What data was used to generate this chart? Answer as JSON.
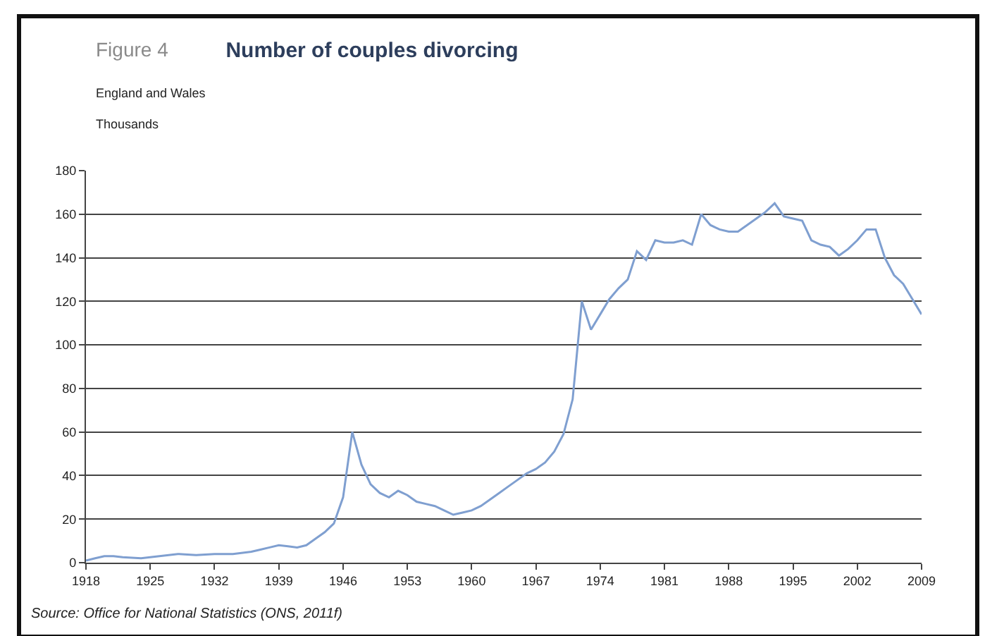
{
  "chart_data": {
    "type": "line",
    "title": "Number of couples divorcing",
    "subtitle": "England and Wales",
    "ylabel": "Thousands",
    "annotations": [
      "Figure 4",
      "Source: Office for National Statistics (ONS, 2011f)"
    ],
    "x": [
      1918,
      1919,
      1920,
      1921,
      1922,
      1924,
      1926,
      1928,
      1930,
      1932,
      1934,
      1936,
      1937,
      1938,
      1939,
      1940,
      1941,
      1942,
      1943,
      1944,
      1945,
      1946,
      1947,
      1948,
      1949,
      1950,
      1951,
      1952,
      1953,
      1954,
      1955,
      1956,
      1957,
      1958,
      1959,
      1960,
      1961,
      1962,
      1963,
      1964,
      1965,
      1966,
      1967,
      1968,
      1969,
      1970,
      1971,
      1972,
      1973,
      1974,
      1975,
      1976,
      1977,
      1978,
      1979,
      1980,
      1981,
      1982,
      1983,
      1984,
      1985,
      1986,
      1987,
      1988,
      1989,
      1990,
      1991,
      1992,
      1993,
      1994,
      1995,
      1996,
      1997,
      1998,
      1999,
      2000,
      2001,
      2002,
      2003,
      2004,
      2005,
      2006,
      2007,
      2008,
      2009
    ],
    "series": [
      {
        "color": "#7f9fd0",
        "values": [
          1,
          2,
          3,
          3,
          2.5,
          2,
          3,
          4,
          3.5,
          4,
          4,
          5,
          6,
          7,
          8,
          7.5,
          7,
          8,
          11,
          14,
          18,
          30,
          60,
          45,
          36,
          32,
          30,
          33,
          31,
          28,
          27,
          26,
          24,
          22,
          23,
          24,
          26,
          29,
          32,
          35,
          38,
          41,
          43,
          46,
          51,
          59,
          75,
          120,
          107,
          114,
          121,
          126,
          130,
          143,
          139,
          148,
          147,
          147,
          148,
          146,
          160,
          155,
          153,
          152,
          152,
          155,
          158,
          161,
          165,
          159,
          158,
          157,
          148,
          146,
          145,
          141,
          144,
          148,
          153,
          153,
          140,
          132,
          128,
          121,
          114
        ]
      }
    ],
    "xlim": [
      1918,
      2009
    ],
    "xticks": [
      1918,
      1925,
      1932,
      1939,
      1946,
      1953,
      1960,
      1967,
      1974,
      1981,
      1988,
      1995,
      2002,
      2009
    ],
    "ylim": [
      0,
      180
    ],
    "yticks": [
      0,
      20,
      40,
      60,
      80,
      100,
      120,
      140,
      160,
      180
    ],
    "grid": "y",
    "marker": "none",
    "line_style": "solid"
  }
}
